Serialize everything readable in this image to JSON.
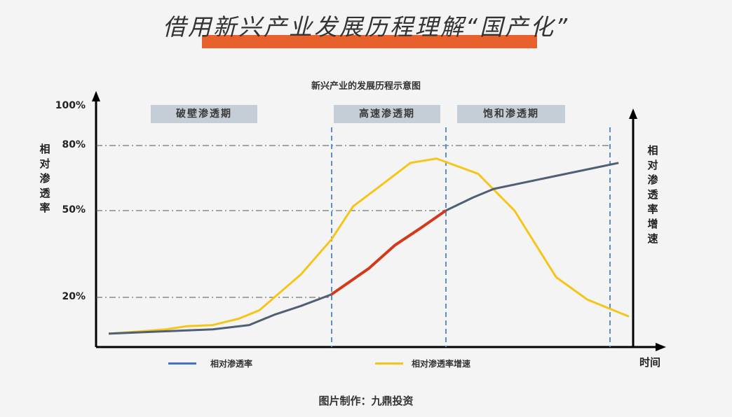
{
  "banner": {
    "title": "借用新兴产业发展历程理解“国产化”",
    "accent": "#e8602c"
  },
  "chart_data": {
    "type": "line",
    "title": "新兴产业的发展历程示意图",
    "ylabel": "相对渗透率",
    "y2label": "相对渗透率增速",
    "xlabel": "时间",
    "yticks": [
      "100%",
      "80%",
      "50%",
      "20%"
    ],
    "ylim": [
      0,
      100
    ],
    "xlim": [
      0,
      100
    ],
    "x_ticks_shown": false,
    "grid": false,
    "phases": [
      "破壁渗透期",
      "高速渗透期",
      "饱和渗透期"
    ],
    "phase_boundaries_x": [
      42.8,
      64.8,
      96.3
    ],
    "reference_lines_y": [
      80,
      50,
      20
    ],
    "legend_position": "bottom",
    "series": [
      {
        "name": "相对渗透率",
        "color": "#4f5f75",
        "highlight_color": "#d4391c",
        "highlight_range_x": [
          42.8,
          64.8
        ],
        "points": [
          [
            0,
            3
          ],
          [
            10,
            4
          ],
          [
            20,
            5
          ],
          [
            27,
            7
          ],
          [
            32,
            12
          ],
          [
            37,
            16
          ],
          [
            42.8,
            21
          ],
          [
            50,
            30
          ],
          [
            55,
            38
          ],
          [
            60,
            44
          ],
          [
            64.8,
            50
          ],
          [
            70,
            56
          ],
          [
            74,
            60
          ],
          [
            80,
            63
          ],
          [
            86,
            66
          ],
          [
            92,
            69
          ],
          [
            98,
            72
          ]
        ]
      },
      {
        "name": "相对渗透率增速",
        "color": "#f5c518",
        "points": [
          [
            0,
            3
          ],
          [
            6,
            4
          ],
          [
            11,
            5
          ],
          [
            15,
            6.5
          ],
          [
            20,
            7
          ],
          [
            25,
            10
          ],
          [
            29,
            14
          ],
          [
            37,
            28
          ],
          [
            42.8,
            40
          ],
          [
            47,
            52
          ],
          [
            52,
            61
          ],
          [
            58,
            72
          ],
          [
            63,
            74
          ],
          [
            71,
            67
          ],
          [
            78,
            50
          ],
          [
            86,
            27
          ],
          [
            92,
            19
          ],
          [
            98,
            13
          ],
          [
            100,
            11
          ]
        ]
      }
    ]
  },
  "legend": {
    "items": [
      {
        "label": "相对渗透率",
        "color": "#4472c4"
      },
      {
        "label": "相对渗透率增速",
        "color": "#f5c518"
      }
    ]
  },
  "credit": "图片制作：九鼎投资"
}
